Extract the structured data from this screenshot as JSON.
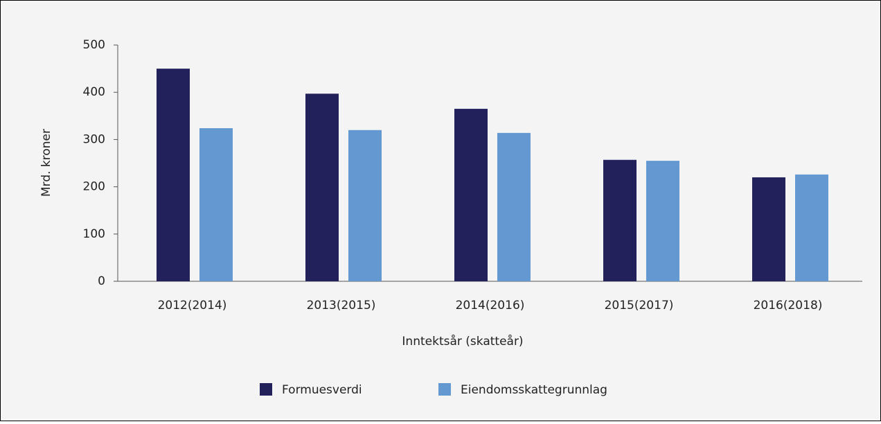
{
  "chart_data": {
    "type": "bar",
    "categories": [
      "2012(2014)",
      "2013(2015)",
      "2014(2016)",
      "2015(2017)",
      "2016(2018)"
    ],
    "series": [
      {
        "name": "Formuesverdi",
        "color": "#22215b",
        "values": [
          450,
          397,
          365,
          257,
          220
        ]
      },
      {
        "name": "Eiendomsskattegrunnlag",
        "color": "#6399d0",
        "values": [
          324,
          320,
          314,
          255,
          226
        ]
      }
    ],
    "xlabel": "Inntektsår (skatteår)",
    "ylabel": "Mrd. kroner",
    "ylim": [
      0,
      500
    ],
    "yticks": [
      0,
      100,
      200,
      300,
      400,
      500
    ],
    "grid": false,
    "legend": "bottom"
  }
}
